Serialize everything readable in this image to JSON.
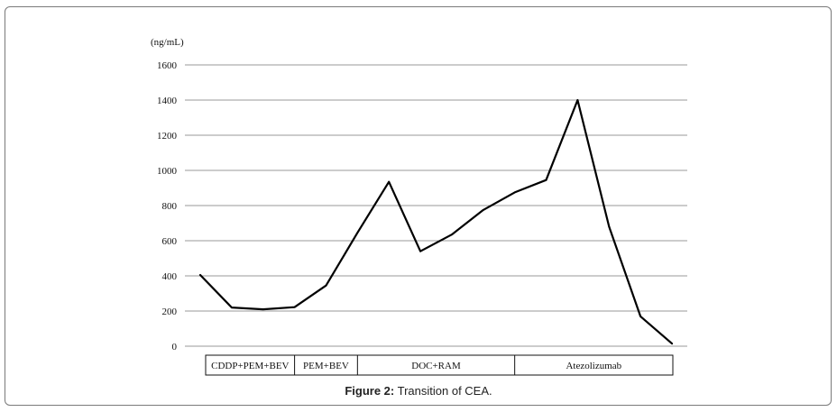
{
  "caption": {
    "label": "Figure 2:",
    "text": " Transition of CEA."
  },
  "chart_data": {
    "type": "line",
    "title": "",
    "ylabel": "(ng/mL)",
    "ylim": [
      0,
      1600
    ],
    "yticks": [
      0,
      200,
      400,
      600,
      800,
      1000,
      1200,
      1400,
      1600
    ],
    "grid": true,
    "line_color": "#000000",
    "grid_color": "#9a9a9a",
    "series": [
      {
        "values": [
          405,
          220,
          210,
          222,
          345,
          645,
          935,
          540,
          635,
          775,
          875,
          945,
          1400,
          680,
          170,
          15
        ]
      }
    ],
    "phases": [
      {
        "label": "CDDP+PEM+BEV",
        "start": 0,
        "end": 3
      },
      {
        "label": "PEM+BEV",
        "start": 3,
        "end": 5
      },
      {
        "label": "DOC+RAM",
        "start": 5,
        "end": 10
      },
      {
        "label": "Atezolizumab",
        "start": 10,
        "end": 14
      }
    ]
  }
}
